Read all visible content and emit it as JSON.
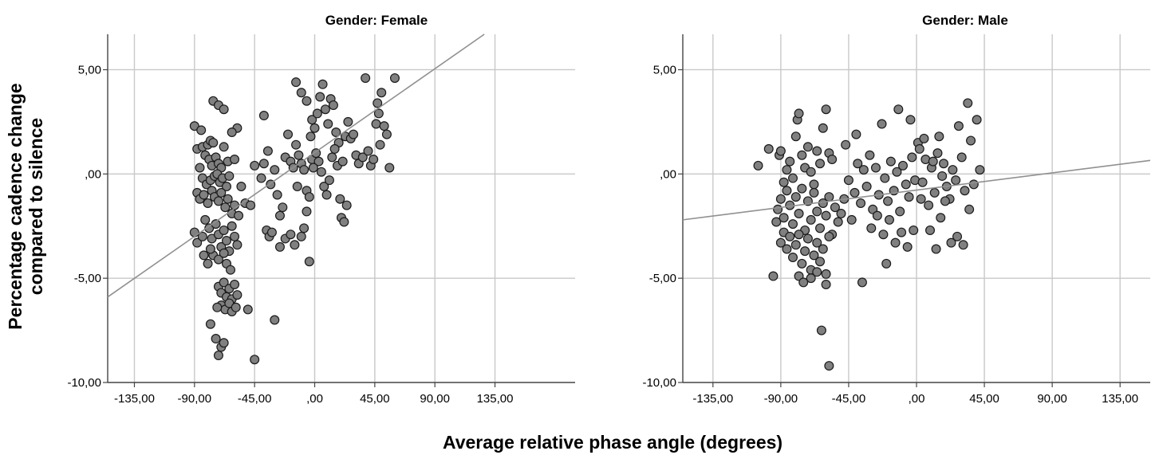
{
  "figure": {
    "ylabel_line1": "Percentage cadence change",
    "ylabel_line2": "compared to silence",
    "xlabel": "Average relative phase angle (degrees)"
  },
  "chart_data": [
    {
      "type": "scatter",
      "title": "Gender: Female",
      "xlabel": "Average relative phase angle (degrees)",
      "ylabel": "Percentage cadence change compared to silence",
      "xlim": [
        -155,
        195
      ],
      "ylim": [
        -10,
        6.7
      ],
      "xticks": [
        -135,
        -90,
        -45,
        0,
        45,
        90,
        135
      ],
      "xtick_labels": [
        "-135,00",
        "-90,00",
        "-45,00",
        ",00",
        "45,00",
        "90,00",
        "135,00"
      ],
      "yticks": [
        -10,
        -5,
        0,
        5
      ],
      "ytick_labels": [
        "-10,00",
        "-5,00",
        ",00",
        "5,00"
      ],
      "grid": true,
      "marker_color": "#808080",
      "fit_line_color": "#909090",
      "fit_line": [
        [
          -155,
          -5.9
        ],
        [
          127,
          6.7
        ]
      ],
      "points": [
        [
          -90,
          2.3
        ],
        [
          -85,
          2.1
        ],
        [
          -88,
          1.2
        ],
        [
          -84,
          1.3
        ],
        [
          -80,
          1.4
        ],
        [
          -78,
          1.6
        ],
        [
          -76,
          1.5
        ],
        [
          -82,
          0.9
        ],
        [
          -79,
          0.7
        ],
        [
          -77,
          0.4
        ],
        [
          -74,
          0.8
        ],
        [
          -72,
          0.5
        ],
        [
          -70,
          0.3
        ],
        [
          -68,
          1.3
        ],
        [
          -65,
          0.6
        ],
        [
          -60,
          0.7
        ],
        [
          -58,
          2.2
        ],
        [
          -76,
          3.5
        ],
        [
          -72,
          3.3
        ],
        [
          -68,
          3.1
        ],
        [
          -62,
          2.0
        ],
        [
          -86,
          0.3
        ],
        [
          -84,
          -0.2
        ],
        [
          -81,
          -0.5
        ],
        [
          -78,
          -0.3
        ],
        [
          -75,
          -0.1
        ],
        [
          -73,
          0.0
        ],
        [
          -71,
          -0.4
        ],
        [
          -69,
          -0.2
        ],
        [
          -66,
          -0.6
        ],
        [
          -64,
          -0.1
        ],
        [
          -88,
          -0.9
        ],
        [
          -86,
          -1.2
        ],
        [
          -83,
          -1.0
        ],
        [
          -80,
          -1.4
        ],
        [
          -77,
          -0.8
        ],
        [
          -75,
          -1.1
        ],
        [
          -72,
          -1.3
        ],
        [
          -70,
          -0.9
        ],
        [
          -67,
          -1.6
        ],
        [
          -65,
          -1.2
        ],
        [
          -62,
          -1.9
        ],
        [
          -60,
          -1.5
        ],
        [
          -57,
          -2.0
        ],
        [
          -90,
          -2.8
        ],
        [
          -88,
          -3.3
        ],
        [
          -84,
          -3.0
        ],
        [
          -82,
          -2.2
        ],
        [
          -79,
          -2.6
        ],
        [
          -77,
          -3.1
        ],
        [
          -74,
          -2.4
        ],
        [
          -72,
          -2.9
        ],
        [
          -70,
          -3.5
        ],
        [
          -68,
          -2.7
        ],
        [
          -66,
          -3.2
        ],
        [
          -64,
          -3.7
        ],
        [
          -62,
          -2.5
        ],
        [
          -60,
          -3.0
        ],
        [
          -58,
          -3.4
        ],
        [
          -76,
          -3.9
        ],
        [
          -72,
          -4.1
        ],
        [
          -68,
          -3.8
        ],
        [
          -66,
          -4.3
        ],
        [
          -63,
          -4.6
        ],
        [
          -80,
          -4.3
        ],
        [
          -78,
          -3.6
        ],
        [
          -83,
          -3.9
        ],
        [
          -72,
          -5.4
        ],
        [
          -70,
          -5.7
        ],
        [
          -68,
          -5.2
        ],
        [
          -66,
          -5.9
        ],
        [
          -64,
          -5.5
        ],
        [
          -62,
          -6.0
        ],
        [
          -60,
          -5.3
        ],
        [
          -58,
          -5.8
        ],
        [
          -70,
          -6.3
        ],
        [
          -67,
          -6.5
        ],
        [
          -64,
          -6.2
        ],
        [
          -62,
          -6.6
        ],
        [
          -59,
          -6.4
        ],
        [
          -73,
          -6.4
        ],
        [
          -78,
          -7.2
        ],
        [
          -74,
          -7.9
        ],
        [
          -70,
          -8.3
        ],
        [
          -72,
          -8.7
        ],
        [
          -68,
          -8.1
        ],
        [
          -50,
          -6.5
        ],
        [
          -45,
          -8.9
        ],
        [
          -55,
          -0.6
        ],
        [
          -52,
          -1.4
        ],
        [
          -48,
          -1.5
        ],
        [
          -45,
          0.4
        ],
        [
          -40,
          -0.2
        ],
        [
          -38,
          0.5
        ],
        [
          -35,
          1.1
        ],
        [
          -33,
          -0.5
        ],
        [
          -30,
          0.2
        ],
        [
          -28,
          -1.0
        ],
        [
          -26,
          -2.0
        ],
        [
          -24,
          -1.6
        ],
        [
          -22,
          0.8
        ],
        [
          -20,
          1.9
        ],
        [
          -18,
          0.6
        ],
        [
          -16,
          0.3
        ],
        [
          -14,
          1.4
        ],
        [
          -12,
          0.9
        ],
        [
          -10,
          0.5
        ],
        [
          -8,
          0.2
        ],
        [
          -6,
          -0.8
        ],
        [
          -4,
          -1.1
        ],
        [
          -2,
          0.7
        ],
        [
          -38,
          2.8
        ],
        [
          -36,
          -2.7
        ],
        [
          -34,
          -3.0
        ],
        [
          -32,
          -2.8
        ],
        [
          -30,
          -7.0
        ],
        [
          -26,
          -3.5
        ],
        [
          -22,
          -3.1
        ],
        [
          -18,
          -2.9
        ],
        [
          -15,
          -3.4
        ],
        [
          -10,
          -3.0
        ],
        [
          -8,
          -2.6
        ],
        [
          -4,
          -4.2
        ],
        [
          -6,
          -1.8
        ],
        [
          -13,
          -0.6
        ],
        [
          -2,
          2.6
        ],
        [
          0,
          2.2
        ],
        [
          2,
          2.9
        ],
        [
          4,
          3.7
        ],
        [
          6,
          4.3
        ],
        [
          8,
          3.1
        ],
        [
          10,
          2.4
        ],
        [
          12,
          3.6
        ],
        [
          14,
          3.3
        ],
        [
          16,
          2.0
        ],
        [
          18,
          1.5
        ],
        [
          1,
          1.0
        ],
        [
          3,
          0.6
        ],
        [
          5,
          0.1
        ],
        [
          7,
          -0.6
        ],
        [
          9,
          -1.0
        ],
        [
          11,
          -0.3
        ],
        [
          13,
          0.8
        ],
        [
          15,
          1.2
        ],
        [
          17,
          0.4
        ],
        [
          19,
          -1.2
        ],
        [
          20,
          -2.1
        ],
        [
          22,
          -2.3
        ],
        [
          24,
          -1.5
        ],
        [
          21,
          0.6
        ],
        [
          23,
          1.8
        ],
        [
          25,
          2.5
        ],
        [
          27,
          1.7
        ],
        [
          29,
          1.9
        ],
        [
          31,
          0.9
        ],
        [
          33,
          0.5
        ],
        [
          36,
          0.8
        ],
        [
          38,
          4.6
        ],
        [
          40,
          1.1
        ],
        [
          42,
          0.4
        ],
        [
          44,
          0.7
        ],
        [
          46,
          2.4
        ],
        [
          48,
          2.9
        ],
        [
          50,
          3.9
        ],
        [
          52,
          2.3
        ],
        [
          54,
          1.9
        ],
        [
          56,
          0.3
        ],
        [
          49,
          1.4
        ],
        [
          47,
          3.4
        ],
        [
          -14,
          4.4
        ],
        [
          -10,
          3.9
        ],
        [
          -6,
          3.5
        ],
        [
          -3,
          1.8
        ],
        [
          -1,
          0.3
        ],
        [
          60,
          4.6
        ]
      ]
    },
    {
      "type": "scatter",
      "title": "Gender: Male",
      "xlabel": "Average relative phase angle (degrees)",
      "ylabel": "Percentage cadence change compared to silence",
      "xlim": [
        -155,
        155
      ],
      "ylim": [
        -10,
        6.7
      ],
      "xticks": [
        -135,
        -90,
        -45,
        0,
        45,
        90,
        135
      ],
      "xtick_labels": [
        "-135,00",
        "-90,00",
        "-45,00",
        ",00",
        "45,00",
        "90,00",
        "135,00"
      ],
      "yticks": [
        -10,
        -5,
        0,
        5
      ],
      "ytick_labels": [
        "-10,00",
        "-5,00",
        ",00",
        "5,00"
      ],
      "grid": true,
      "marker_color": "#808080",
      "fit_line_color": "#909090",
      "fit_line": [
        [
          -155,
          -2.2
        ],
        [
          155,
          0.65
        ]
      ],
      "points": [
        [
          -105,
          0.4
        ],
        [
          -98,
          1.2
        ],
        [
          -93,
          -2.3
        ],
        [
          -91,
          0.9
        ],
        [
          -90,
          1.1
        ],
        [
          -88,
          -0.4
        ],
        [
          -86,
          0.2
        ],
        [
          -84,
          0.6
        ],
        [
          -82,
          -0.2
        ],
        [
          -80,
          1.8
        ],
        [
          -79,
          2.6
        ],
        [
          -78,
          2.9
        ],
        [
          -76,
          0.9
        ],
        [
          -74,
          0.3
        ],
        [
          -72,
          1.3
        ],
        [
          -70,
          0.1
        ],
        [
          -68,
          -0.5
        ],
        [
          -66,
          1.1
        ],
        [
          -64,
          0.5
        ],
        [
          -62,
          2.2
        ],
        [
          -60,
          3.1
        ],
        [
          -58,
          1.0
        ],
        [
          -56,
          0.7
        ],
        [
          -92,
          -1.7
        ],
        [
          -90,
          -1.2
        ],
        [
          -88,
          -2.1
        ],
        [
          -86,
          -0.8
        ],
        [
          -84,
          -1.5
        ],
        [
          -82,
          -2.4
        ],
        [
          -80,
          -1.1
        ],
        [
          -78,
          -1.9
        ],
        [
          -76,
          -0.7
        ],
        [
          -74,
          -2.7
        ],
        [
          -72,
          -1.3
        ],
        [
          -70,
          -2.2
        ],
        [
          -68,
          -0.9
        ],
        [
          -66,
          -1.8
        ],
        [
          -64,
          -2.6
        ],
        [
          -62,
          -1.4
        ],
        [
          -60,
          -2.0
        ],
        [
          -58,
          -1.1
        ],
        [
          -56,
          -2.9
        ],
        [
          -54,
          -1.6
        ],
        [
          -52,
          -2.3
        ],
        [
          -50,
          -1.9
        ],
        [
          -90,
          -3.3
        ],
        [
          -88,
          -2.8
        ],
        [
          -86,
          -3.6
        ],
        [
          -84,
          -3.0
        ],
        [
          -82,
          -4.0
        ],
        [
          -80,
          -3.4
        ],
        [
          -78,
          -2.9
        ],
        [
          -76,
          -4.3
        ],
        [
          -74,
          -3.7
        ],
        [
          -72,
          -3.1
        ],
        [
          -70,
          -4.6
        ],
        [
          -68,
          -3.9
        ],
        [
          -66,
          -3.3
        ],
        [
          -64,
          -4.2
        ],
        [
          -62,
          -3.6
        ],
        [
          -60,
          -4.8
        ],
        [
          -58,
          -3.0
        ],
        [
          -78,
          -4.9
        ],
        [
          -75,
          -5.2
        ],
        [
          -70,
          -5.0
        ],
        [
          -66,
          -4.7
        ],
        [
          -60,
          -5.3
        ],
        [
          -95,
          -4.9
        ],
        [
          -63,
          -7.5
        ],
        [
          -58,
          -9.2
        ],
        [
          -48,
          -1.2
        ],
        [
          -45,
          -0.3
        ],
        [
          -43,
          -2.2
        ],
        [
          -41,
          -0.9
        ],
        [
          -39,
          0.5
        ],
        [
          -37,
          -1.4
        ],
        [
          -35,
          0.2
        ],
        [
          -33,
          -0.6
        ],
        [
          -31,
          0.9
        ],
        [
          -29,
          -1.7
        ],
        [
          -27,
          0.3
        ],
        [
          -25,
          -1.0
        ],
        [
          -23,
          2.4
        ],
        [
          -21,
          -0.2
        ],
        [
          -19,
          -1.3
        ],
        [
          -17,
          0.6
        ],
        [
          -15,
          -0.8
        ],
        [
          -13,
          0.1
        ],
        [
          -11,
          -1.8
        ],
        [
          -9,
          0.4
        ],
        [
          -7,
          -0.5
        ],
        [
          -5,
          -1.1
        ],
        [
          -3,
          0.8
        ],
        [
          -1,
          -0.3
        ],
        [
          1,
          1.5
        ],
        [
          3,
          -1.2
        ],
        [
          -47,
          1.4
        ],
        [
          -40,
          1.9
        ],
        [
          -30,
          -2.6
        ],
        [
          -26,
          -2.0
        ],
        [
          -22,
          -2.9
        ],
        [
          -18,
          -2.2
        ],
        [
          -14,
          -3.3
        ],
        [
          -10,
          -2.8
        ],
        [
          -6,
          -3.5
        ],
        [
          -2,
          -2.7
        ],
        [
          -20,
          -4.3
        ],
        [
          -36,
          -5.2
        ],
        [
          2,
          1.2
        ],
        [
          4,
          -0.4
        ],
        [
          6,
          0.7
        ],
        [
          8,
          -1.5
        ],
        [
          10,
          0.3
        ],
        [
          12,
          -0.9
        ],
        [
          14,
          1.0
        ],
        [
          16,
          -2.1
        ],
        [
          18,
          0.5
        ],
        [
          20,
          -0.6
        ],
        [
          22,
          -1.2
        ],
        [
          24,
          0.2
        ],
        [
          26,
          -0.3
        ],
        [
          28,
          2.3
        ],
        [
          30,
          0.8
        ],
        [
          32,
          -0.8
        ],
        [
          34,
          3.4
        ],
        [
          36,
          1.6
        ],
        [
          38,
          -0.5
        ],
        [
          40,
          2.6
        ],
        [
          42,
          0.2
        ],
        [
          15,
          1.8
        ],
        [
          19,
          -1.3
        ],
        [
          23,
          -3.3
        ],
        [
          27,
          -3.0
        ],
        [
          31,
          -3.4
        ],
        [
          35,
          -1.7
        ],
        [
          9,
          -2.7
        ],
        [
          13,
          -3.6
        ],
        [
          -12,
          3.1
        ],
        [
          -4,
          2.6
        ],
        [
          5,
          1.7
        ],
        [
          11,
          0.6
        ],
        [
          17,
          -0.1
        ]
      ]
    }
  ]
}
